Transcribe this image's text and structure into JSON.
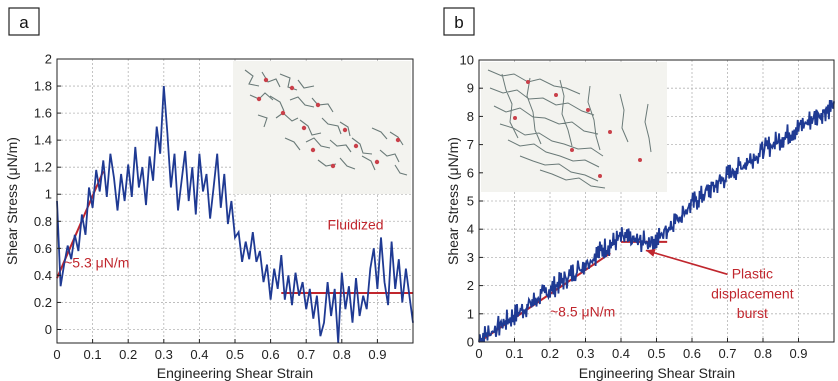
{
  "colors": {
    "series": "#1f3a93",
    "fit": "#c0262d",
    "annotation": "#c0262d",
    "grid": "#b5b5b5",
    "inset_bg": "#f3f3ef"
  },
  "chart_data": [
    {
      "type": "line",
      "panel_label": "a",
      "xlabel": "Engineering Shear Strain",
      "ylabel": "Shear Stress (μN/m)",
      "xlim": [
        0,
        1
      ],
      "ylim": [
        -0.1,
        2
      ],
      "xticks": [
        0,
        0.1,
        0.2,
        0.3,
        0.4,
        0.5,
        0.6,
        0.7,
        0.8,
        0.9
      ],
      "xtick_labels": [
        "0",
        "0.1",
        "0.2",
        "0.3",
        "0.4",
        "0.5",
        "0.6",
        "0.7",
        "0.8",
        "0.9"
      ],
      "yticks": [
        0,
        0.2,
        0.4,
        0.6,
        0.8,
        1,
        1.2,
        1.4,
        1.6,
        1.8,
        2
      ],
      "ytick_labels": [
        "0",
        "0.2",
        "0.4",
        "0.6",
        "0.8",
        "1",
        "1.2",
        "1.4",
        "1.6",
        "1.8",
        "2"
      ],
      "grid": true,
      "inset": "network snapshot (fragmented)",
      "series": [
        {
          "x": [
            0,
            0.01,
            0.02,
            0.03,
            0.04,
            0.05,
            0.06,
            0.07,
            0.08,
            0.09,
            0.1,
            0.11,
            0.12,
            0.13,
            0.14,
            0.15,
            0.16,
            0.17,
            0.18,
            0.19,
            0.2,
            0.21,
            0.22,
            0.23,
            0.24,
            0.25,
            0.26,
            0.27,
            0.28,
            0.29,
            0.3,
            0.31,
            0.32,
            0.33,
            0.34,
            0.35,
            0.36,
            0.37,
            0.38,
            0.39,
            0.4,
            0.41,
            0.42,
            0.43,
            0.44,
            0.45,
            0.46,
            0.47,
            0.48,
            0.49,
            0.5,
            0.51,
            0.52,
            0.53,
            0.54,
            0.55,
            0.56,
            0.57,
            0.58,
            0.59,
            0.6,
            0.61,
            0.62,
            0.63,
            0.64,
            0.65,
            0.66,
            0.67,
            0.68,
            0.69,
            0.7,
            0.71,
            0.72,
            0.73,
            0.74,
            0.75,
            0.76,
            0.77,
            0.78,
            0.79,
            0.8,
            0.81,
            0.82,
            0.83,
            0.84,
            0.85,
            0.86,
            0.87,
            0.88,
            0.89,
            0.9,
            0.91,
            0.92,
            0.93,
            0.94,
            0.95,
            0.96,
            0.97,
            0.98,
            0.99,
            1.0
          ],
          "y": [
            0.95,
            0.32,
            0.48,
            0.62,
            0.52,
            0.7,
            0.58,
            0.85,
            0.7,
            1.05,
            0.9,
            1.18,
            1.02,
            1.25,
            0.98,
            1.3,
            1.12,
            0.88,
            1.15,
            0.95,
            1.22,
            0.98,
            1.35,
            1.05,
            1.2,
            0.92,
            1.28,
            1.1,
            1.5,
            1.3,
            1.8,
            1.45,
            1.05,
            1.3,
            0.88,
            1.1,
            1.32,
            0.95,
            1.2,
            0.85,
            1.3,
            1.02,
            1.15,
            0.82,
            1.05,
            1.3,
            0.9,
            1.15,
            0.78,
            0.95,
            0.68,
            0.72,
            0.5,
            0.65,
            0.52,
            0.72,
            0.5,
            0.58,
            0.35,
            0.48,
            0.22,
            0.45,
            0.3,
            0.55,
            0.22,
            0.4,
            0.18,
            0.42,
            0.25,
            0.35,
            0.15,
            0.3,
            0.08,
            0.25,
            -0.05,
            0.05,
            0.35,
            0.1,
            0.3,
            -0.1,
            0.42,
            0.15,
            0.32,
            0.05,
            0.38,
            0.1,
            0.25,
            0.15,
            0.45,
            0.6,
            0.3,
            0.68,
            0.35,
            0.18,
            0.65,
            0.3,
            0.52,
            0.2,
            0.45,
            0.25,
            0.05
          ]
        }
      ],
      "fits": [
        {
          "x": [
            0,
            0.13
          ],
          "y": [
            0.38,
            1.17
          ]
        },
        {
          "x": [
            0.63,
            1.0
          ],
          "y": [
            0.27,
            0.27
          ]
        }
      ],
      "annotations": [
        {
          "text": "~5.3 μN/m",
          "x": 0.02,
          "y": 0.46
        },
        {
          "text": "Fluidized",
          "x": 0.76,
          "y": 0.74
        }
      ]
    },
    {
      "type": "line",
      "panel_label": "b",
      "xlabel": "Engineering Shear Strain",
      "ylabel": "Shear Stress (μN/m)",
      "xlim": [
        0,
        1
      ],
      "ylim": [
        0,
        10
      ],
      "xticks": [
        0,
        0.1,
        0.2,
        0.3,
        0.4,
        0.5,
        0.6,
        0.7,
        0.8,
        0.9
      ],
      "xtick_labels": [
        "0",
        "0.1",
        "0.2",
        "0.3",
        "0.4",
        "0.5",
        "0.6",
        "0.7",
        "0.8",
        "0.9"
      ],
      "yticks": [
        0,
        1,
        2,
        3,
        4,
        5,
        6,
        7,
        8,
        9,
        10
      ],
      "ytick_labels": [
        "0",
        "1",
        "2",
        "3",
        "4",
        "5",
        "6",
        "7",
        "8",
        "9",
        "10"
      ],
      "grid": true,
      "inset": "network snapshot (connected)",
      "series": [
        {
          "x": [
            0,
            0.05,
            0.1,
            0.15,
            0.2,
            0.25,
            0.3,
            0.35,
            0.4,
            0.45,
            0.5,
            0.55,
            0.6,
            0.65,
            0.7,
            0.75,
            0.8,
            0.85,
            0.9,
            0.95,
            1.0
          ],
          "y": [
            0.1,
            0.5,
            0.95,
            1.4,
            1.85,
            2.3,
            2.8,
            3.3,
            3.7,
            3.55,
            3.6,
            4.3,
            4.9,
            5.4,
            5.9,
            6.35,
            6.8,
            7.2,
            7.6,
            8.0,
            8.4
          ]
        }
      ],
      "fits": [
        {
          "x": [
            0,
            0.37
          ],
          "y": [
            0,
            3.15
          ]
        },
        {
          "x": [
            0.4,
            0.53
          ],
          "y": [
            3.55,
            3.55
          ]
        }
      ],
      "annotations": [
        {
          "text": "~8.5 μN/m",
          "x": 0.2,
          "y": 0.9
        },
        {
          "text": "Plastic",
          "x": 0.77,
          "y": 2.25
        },
        {
          "text": "displacement",
          "x": 0.77,
          "y": 1.55
        },
        {
          "text": "burst",
          "x": 0.77,
          "y": 0.85
        }
      ],
      "arrow": {
        "from_x": 0.7,
        "from_y": 2.4,
        "to_x": 0.47,
        "to_y": 3.25
      }
    }
  ]
}
